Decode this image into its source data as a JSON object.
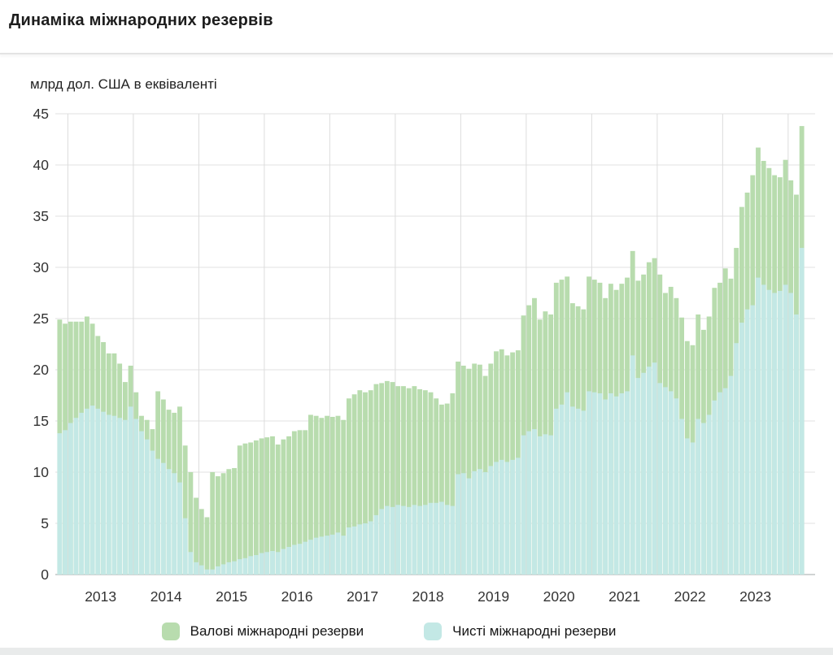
{
  "header": {
    "title": "Динаміка міжнародних резервів"
  },
  "chart_data": {
    "type": "bar",
    "title": "Динаміка міжнародних резервів",
    "unit_label": "млрд дол. США в еквіваленті",
    "start_month": "2012-11",
    "end_month": "2024-03",
    "x_tick_labels": [
      "2013",
      "2014",
      "2015",
      "2016",
      "2017",
      "2018",
      "2019",
      "2020",
      "2021",
      "2022",
      "2023"
    ],
    "y_ticks": [
      0,
      5,
      10,
      15,
      20,
      25,
      30,
      35,
      40,
      45
    ],
    "ylim": [
      0,
      45
    ],
    "grid": true,
    "legend_position": "bottom",
    "colors": {
      "gross": "#b8dcae",
      "net": "#c3e8e5",
      "gridline": "#e1e1e1",
      "year_gridline": "#dcdcdc",
      "baseline": "#b3baba",
      "tick_text": "#333333"
    },
    "series": [
      {
        "name": "Валові міжнародні резерви",
        "color": "#b8dcae",
        "values": [
          24.9,
          24.5,
          24.7,
          24.7,
          24.7,
          25.2,
          24.5,
          23.3,
          22.7,
          21.6,
          21.6,
          20.6,
          18.8,
          20.4,
          17.8,
          15.5,
          15.1,
          14.2,
          17.9,
          17.1,
          16.1,
          15.8,
          16.4,
          12.6,
          10.0,
          7.5,
          6.4,
          5.6,
          10.0,
          9.6,
          9.9,
          10.3,
          10.4,
          12.6,
          12.8,
          12.9,
          13.1,
          13.3,
          13.4,
          13.5,
          12.7,
          13.2,
          13.5,
          14.0,
          14.1,
          14.1,
          15.6,
          15.5,
          15.3,
          15.5,
          15.4,
          15.5,
          15.1,
          17.2,
          17.6,
          18.0,
          17.8,
          18.0,
          18.6,
          18.7,
          18.9,
          18.8,
          18.4,
          18.4,
          18.2,
          18.4,
          18.1,
          18.0,
          17.8,
          17.2,
          16.6,
          16.7,
          17.7,
          20.8,
          20.4,
          20.1,
          20.6,
          20.5,
          19.4,
          20.6,
          21.8,
          22.0,
          21.4,
          21.7,
          21.9,
          25.3,
          26.3,
          27.0,
          24.9,
          25.7,
          25.4,
          28.5,
          28.8,
          29.1,
          26.5,
          26.2,
          25.9,
          29.1,
          28.8,
          28.5,
          27.0,
          28.4,
          27.8,
          28.4,
          29.0,
          31.6,
          28.7,
          29.3,
          30.5,
          30.9,
          29.3,
          27.5,
          28.1,
          27.0,
          25.1,
          22.8,
          22.4,
          25.4,
          23.9,
          25.2,
          28.0,
          28.5,
          29.9,
          28.9,
          31.9,
          35.9,
          37.3,
          39.0,
          41.7,
          40.4,
          39.7,
          39.0,
          38.8,
          40.5,
          38.5,
          37.1,
          43.8
        ]
      },
      {
        "name": "Чисті міжнародні резерви",
        "color": "#c3e8e5",
        "values": [
          13.8,
          14.1,
          14.8,
          15.3,
          15.8,
          16.2,
          16.5,
          16.2,
          15.9,
          15.6,
          15.5,
          15.3,
          15.1,
          16.4,
          15.2,
          14.0,
          13.2,
          12.1,
          11.3,
          10.9,
          10.3,
          9.9,
          9.0,
          5.5,
          2.2,
          1.2,
          0.9,
          0.5,
          0.5,
          0.8,
          1.0,
          1.2,
          1.3,
          1.5,
          1.6,
          1.8,
          1.9,
          2.1,
          2.2,
          2.3,
          2.2,
          2.5,
          2.7,
          2.9,
          3.0,
          3.2,
          3.4,
          3.6,
          3.7,
          3.8,
          3.9,
          4.1,
          3.8,
          4.6,
          4.7,
          4.9,
          5.0,
          5.2,
          5.8,
          6.4,
          6.7,
          6.6,
          6.8,
          6.7,
          6.6,
          6.8,
          6.7,
          6.8,
          7.0,
          7.0,
          7.1,
          6.8,
          6.7,
          9.8,
          9.9,
          9.4,
          10.1,
          10.3,
          10.0,
          10.6,
          11.0,
          11.2,
          11.0,
          11.2,
          11.4,
          13.6,
          14.0,
          14.2,
          13.5,
          13.7,
          13.6,
          16.2,
          16.6,
          17.8,
          16.4,
          16.2,
          16.0,
          17.9,
          17.8,
          17.7,
          17.1,
          17.7,
          17.4,
          17.7,
          17.9,
          21.4,
          19.2,
          19.7,
          20.3,
          20.7,
          18.7,
          18.3,
          17.9,
          17.2,
          15.2,
          13.3,
          12.9,
          15.2,
          14.8,
          15.6,
          17.0,
          17.8,
          18.2,
          19.4,
          22.6,
          24.6,
          25.9,
          26.3,
          29.0,
          28.3,
          27.8,
          27.5,
          27.7,
          28.3,
          27.5,
          25.4,
          31.9
        ]
      }
    ]
  },
  "legend": {
    "items": [
      {
        "label": "Валові міжнародні резерви",
        "color": "#b8dcae"
      },
      {
        "label": "Чисті міжнародні резерви",
        "color": "#c3e8e5"
      }
    ]
  }
}
